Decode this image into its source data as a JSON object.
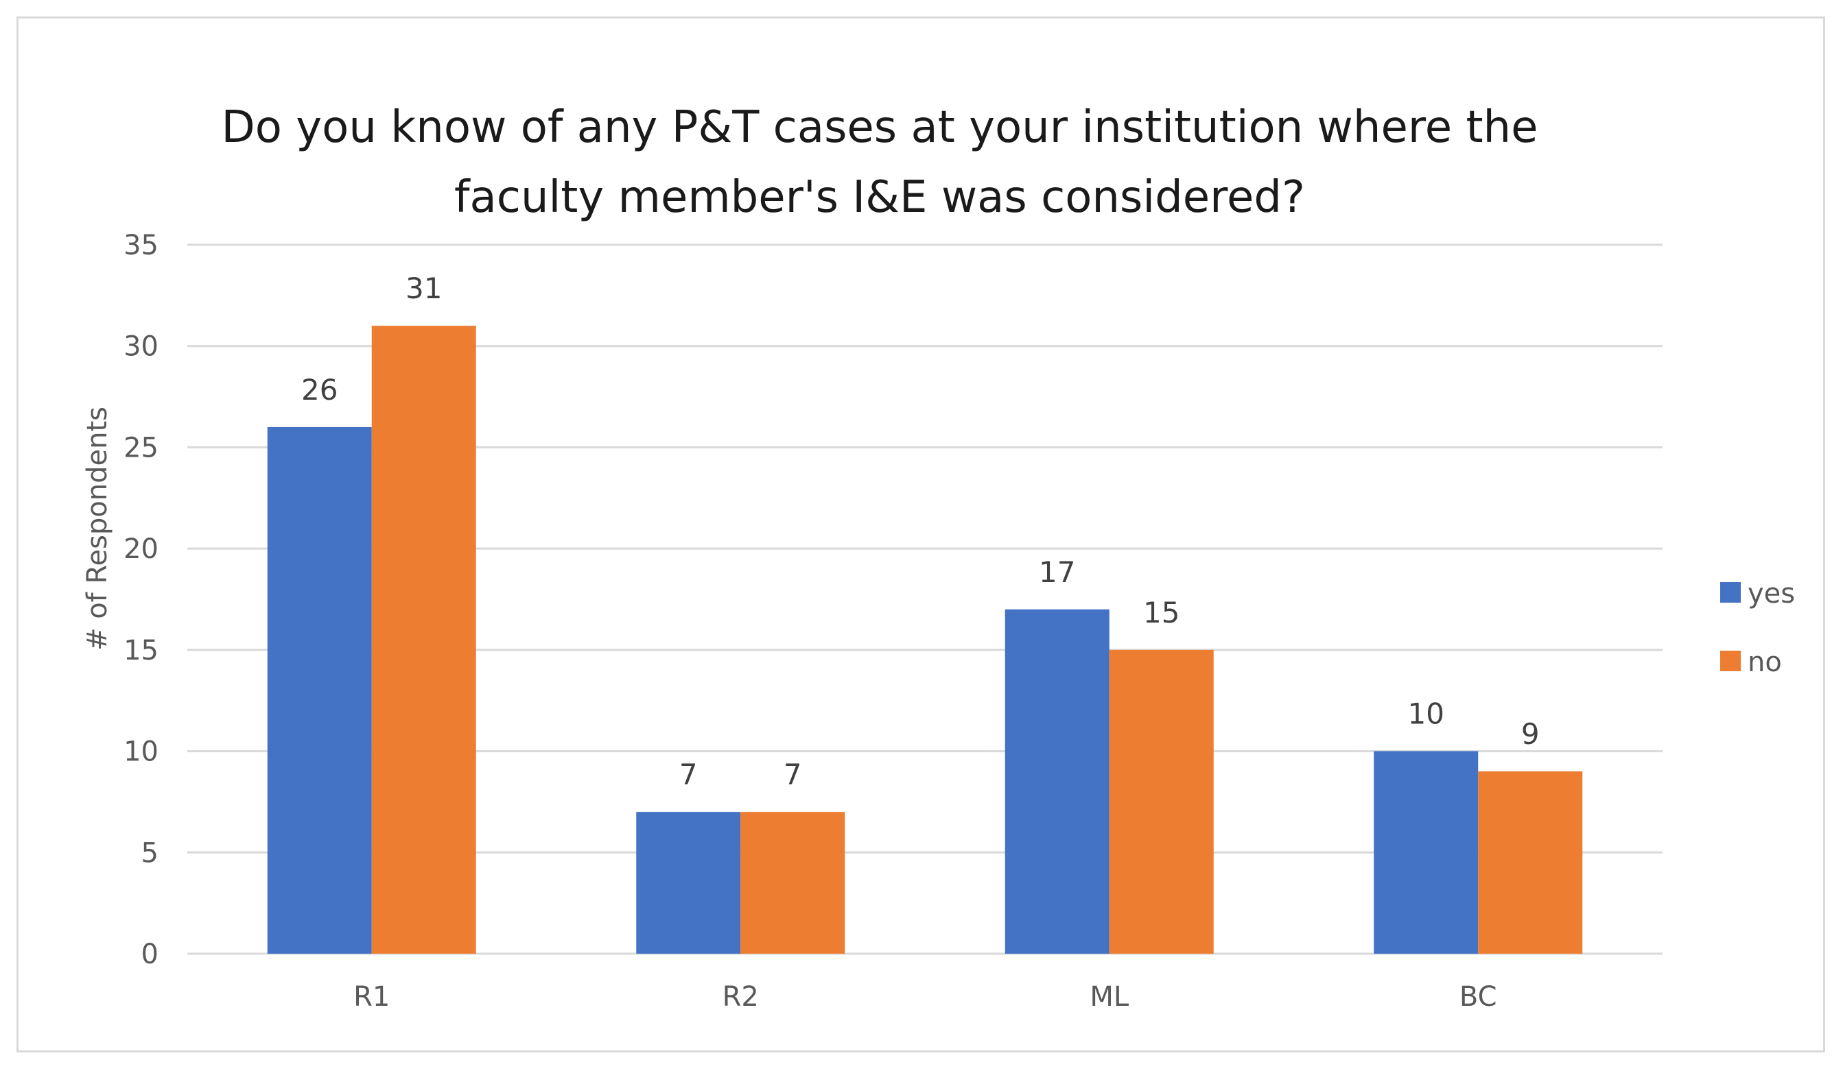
{
  "chart_data": {
    "type": "bar",
    "title_lines": [
      "Do you know of any P&T cases at your institution where the",
      "faculty member's I&E was considered?"
    ],
    "ylabel": "# of Respondents",
    "xlabel": "",
    "ylim": [
      0,
      35
    ],
    "yticks": [
      0,
      5,
      10,
      15,
      20,
      25,
      30,
      35
    ],
    "grid": true,
    "legend_position": "right",
    "categories": [
      "R1",
      "R2",
      "ML",
      "BC"
    ],
    "series": [
      {
        "name": "yes",
        "color": "#4472c4",
        "values": [
          26,
          7,
          17,
          10
        ]
      },
      {
        "name": "no",
        "color": "#ed7d31",
        "values": [
          31,
          7,
          15,
          9
        ]
      }
    ]
  }
}
